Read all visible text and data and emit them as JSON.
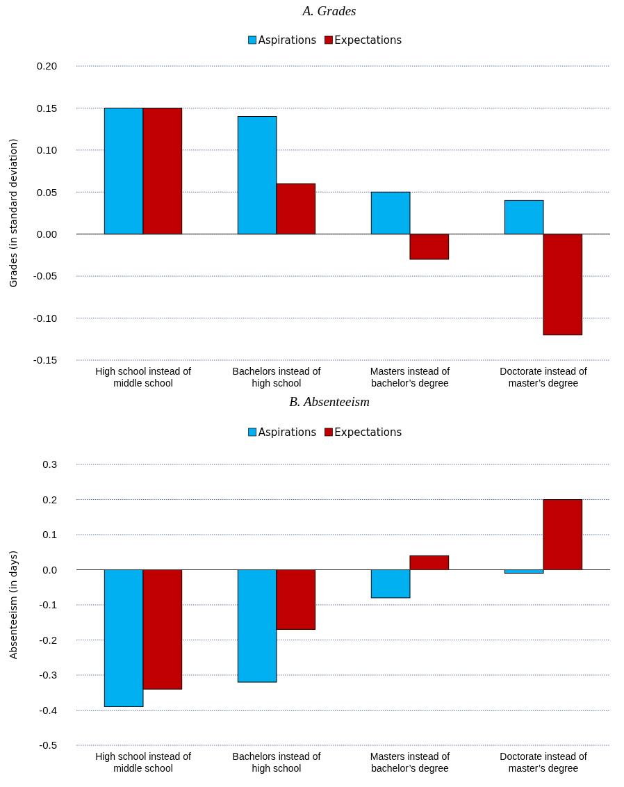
{
  "chart_data": [
    {
      "type": "bar",
      "title": "A. Grades",
      "ylabel": "Grades (in standard deviation)",
      "categories": [
        "High school instead of middle school",
        "Bachelors instead of high school",
        "Masters instead of bachelor’s degree",
        "Doctorate instead of master’s degree"
      ],
      "series": [
        {
          "name": "Aspirations",
          "color": "#00b0f0",
          "values": [
            0.15,
            0.14,
            0.05,
            0.04
          ]
        },
        {
          "name": "Expectations",
          "color": "#c00000",
          "values": [
            0.15,
            0.06,
            -0.03,
            -0.12
          ]
        }
      ],
      "ylim": [
        -0.15,
        0.2
      ],
      "yticks": [
        {
          "value": -0.15,
          "label": "-0.15"
        },
        {
          "value": -0.1,
          "label": "-0.10"
        },
        {
          "value": -0.05,
          "label": "-0.05"
        },
        {
          "value": 0,
          "label": "0.00"
        },
        {
          "value": 0.05,
          "label": "0.05"
        },
        {
          "value": 0.1,
          "label": "0.10"
        },
        {
          "value": 0.15,
          "label": "0.15"
        },
        {
          "value": 0.2,
          "label": "0.20"
        }
      ],
      "grid": "y",
      "legend": "top"
    },
    {
      "type": "bar",
      "title": "B. Absenteeism",
      "ylabel": "Absenteeism (in days)",
      "categories": [
        "High school instead of middle school",
        "Bachelors instead of high school",
        "Masters instead of bachelor’s degree",
        "Doctorate instead of master’s degree"
      ],
      "series": [
        {
          "name": "Aspirations",
          "color": "#00b0f0",
          "values": [
            -0.39,
            -0.32,
            -0.08,
            -0.01
          ]
        },
        {
          "name": "Expectations",
          "color": "#c00000",
          "values": [
            -0.34,
            -0.17,
            0.04,
            0.2
          ]
        }
      ],
      "ylim": [
        -0.5,
        0.3
      ],
      "yticks": [
        {
          "value": -0.5,
          "label": "-0.5"
        },
        {
          "value": -0.4,
          "label": "-0.4"
        },
        {
          "value": -0.3,
          "label": "-0.3"
        },
        {
          "value": -0.2,
          "label": "-0.2"
        },
        {
          "value": -0.1,
          "label": "-0.1"
        },
        {
          "value": 0,
          "label": "0.0"
        },
        {
          "value": 0.1,
          "label": "0.1"
        },
        {
          "value": 0.2,
          "label": "0.2"
        },
        {
          "value": 0.3,
          "label": "0.3"
        }
      ],
      "grid": "y",
      "legend": "top"
    }
  ]
}
